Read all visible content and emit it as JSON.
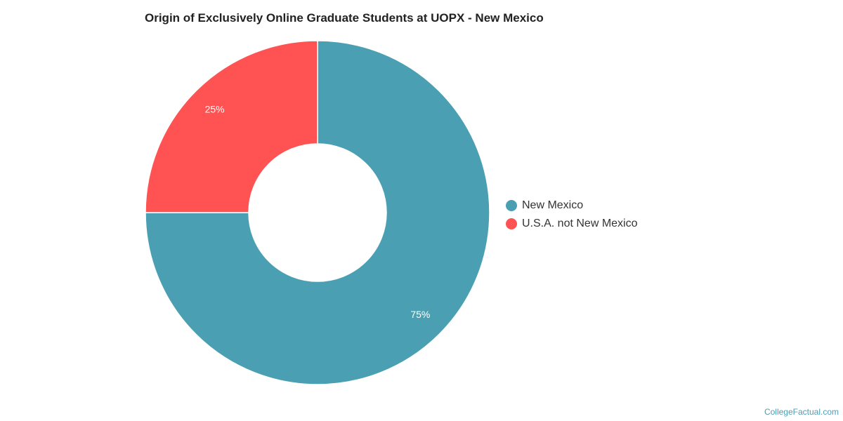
{
  "chart_data": {
    "type": "pie",
    "title": "Origin of Exclusively Online Graduate Students at UOPX - New Mexico",
    "donut": true,
    "categories": [
      "New Mexico",
      "U.S.A. not New Mexico"
    ],
    "values": [
      75,
      25
    ],
    "data_labels": [
      "75%",
      "25%"
    ],
    "colors": [
      "#4aa0b2",
      "#ff5252"
    ],
    "legend_position": "right"
  },
  "watermark": "CollegeFactual.com"
}
